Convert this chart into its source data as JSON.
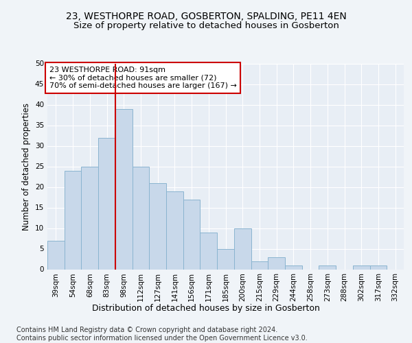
{
  "title": "23, WESTHORPE ROAD, GOSBERTON, SPALDING, PE11 4EN",
  "subtitle": "Size of property relative to detached houses in Gosberton",
  "xlabel": "Distribution of detached houses by size in Gosberton",
  "ylabel": "Number of detached properties",
  "categories": [
    "39sqm",
    "54sqm",
    "68sqm",
    "83sqm",
    "98sqm",
    "112sqm",
    "127sqm",
    "141sqm",
    "156sqm",
    "171sqm",
    "185sqm",
    "200sqm",
    "215sqm",
    "229sqm",
    "244sqm",
    "258sqm",
    "273sqm",
    "288sqm",
    "302sqm",
    "317sqm",
    "332sqm"
  ],
  "values": [
    7,
    24,
    25,
    32,
    39,
    25,
    21,
    19,
    17,
    9,
    5,
    10,
    2,
    3,
    1,
    0,
    1,
    0,
    1,
    1,
    0
  ],
  "bar_color": "#c8d8ea",
  "bar_edge_color": "#8ab4d0",
  "vline_color": "#cc0000",
  "annotation_text": "23 WESTHORPE ROAD: 91sqm\n← 30% of detached houses are smaller (72)\n70% of semi-detached houses are larger (167) →",
  "annotation_box_color": "#ffffff",
  "annotation_box_edge": "#cc0000",
  "annotation_fontsize": 8.0,
  "title_fontsize": 10,
  "subtitle_fontsize": 9.5,
  "xlabel_fontsize": 9,
  "ylabel_fontsize": 8.5,
  "tick_fontsize": 7.5,
  "footer_text": "Contains HM Land Registry data © Crown copyright and database right 2024.\nContains public sector information licensed under the Open Government Licence v3.0.",
  "footer_fontsize": 7,
  "bg_color": "#f0f4f8",
  "plot_bg_color": "#e8eef5",
  "ylim": [
    0,
    50
  ],
  "yticks": [
    0,
    5,
    10,
    15,
    20,
    25,
    30,
    35,
    40,
    45,
    50
  ]
}
